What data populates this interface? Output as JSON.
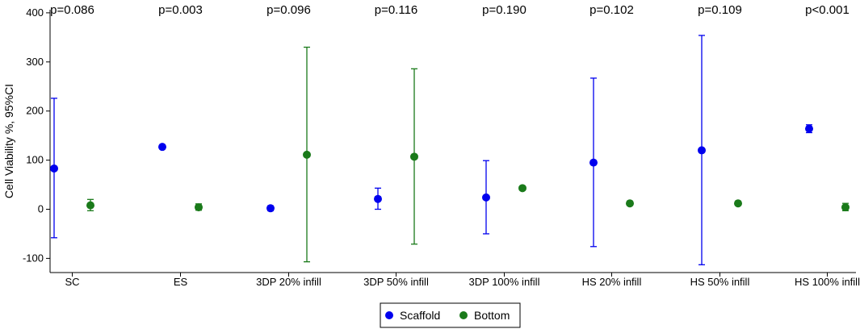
{
  "chart_data": {
    "type": "scatter",
    "title": "",
    "xlabel": "",
    "ylabel": "Cell Viability %, 95%CI",
    "ylim": [
      -110,
      400
    ],
    "yticks": [
      -100,
      0,
      100,
      200,
      300,
      400
    ],
    "categories": [
      "SC",
      "ES",
      "3DP 20% infill",
      "3DP 50% infill",
      "3DP 100% infill",
      "HS 20% infill",
      "HS 50% infill",
      "HS 100% infill"
    ],
    "p_values": [
      "p=0.086",
      "p=0.003",
      "p=0.096",
      "p=0.116",
      "p=0.190",
      "p=0.102",
      "p=0.109",
      "p<0.001"
    ],
    "series": [
      {
        "name": "Scaffold",
        "color": "#0000ee",
        "values": [
          83,
          127,
          2,
          21,
          24,
          95,
          120,
          164
        ],
        "ci_low": [
          -58,
          null,
          -3,
          0,
          -50,
          -76,
          -113,
          156
        ],
        "ci_high": [
          226,
          null,
          7,
          43,
          99,
          267,
          354,
          172
        ]
      },
      {
        "name": "Bottom",
        "color": "#1a7a1a",
        "values": [
          8,
          4,
          111,
          107,
          43,
          12,
          12,
          4
        ],
        "ci_low": [
          -3,
          -2,
          -107,
          -71,
          null,
          null,
          null,
          -3
        ],
        "ci_high": [
          20,
          11,
          330,
          286,
          null,
          null,
          null,
          12
        ]
      }
    ],
    "legend": {
      "position": "bottom-center",
      "entries": [
        "Scaffold",
        "Bottom"
      ]
    }
  }
}
